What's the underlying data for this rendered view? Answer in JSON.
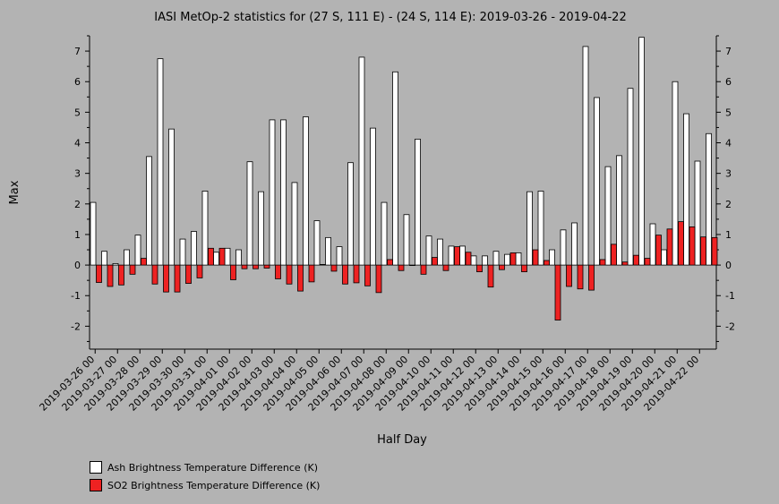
{
  "chart_data": {
    "type": "bar",
    "title": "IASI MetOp-2 statistics for (27 S, 111 E) - (24 S, 114 E): 2019-03-26 - 2019-04-22",
    "xlabel": "Half Day",
    "ylabel": "Max",
    "ylim": [
      -2.75,
      7.5
    ],
    "yticks": [
      -2,
      -1,
      0,
      1,
      2,
      3,
      4,
      5,
      6,
      7
    ],
    "x_tick_labels": [
      "2019-03-26 00",
      "2019-03-27 00",
      "2019-03-28 00",
      "2019-03-29 00",
      "2019-03-30 00",
      "2019-03-31 00",
      "2019-04-01 00",
      "2019-04-02 00",
      "2019-04-03 00",
      "2019-04-04 00",
      "2019-04-05 00",
      "2019-04-06 00",
      "2019-04-07 00",
      "2019-04-08 00",
      "2019-04-09 00",
      "2019-04-10 00",
      "2019-04-11 00",
      "2019-04-12 00",
      "2019-04-13 00",
      "2019-04-14 00",
      "2019-04-15 00",
      "2019-04-16 00",
      "2019-04-17 00",
      "2019-04-18 00",
      "2019-04-19 00",
      "2019-04-20 00",
      "2019-04-21 00",
      "2019-04-22 00"
    ],
    "legend_position": "bottom-left",
    "series": [
      {
        "name": "Ash Brightness Temperature Difference (K)",
        "color": "#ffffff",
        "values": [
          2.05,
          0.45,
          0.05,
          0.5,
          0.98,
          3.55,
          6.75,
          4.45,
          0.85,
          1.1,
          2.42,
          0.42,
          0.55,
          0.5,
          3.38,
          2.4,
          4.75,
          4.75,
          2.7,
          4.85,
          1.45,
          0.9,
          0.6,
          3.35,
          6.8,
          4.48,
          2.05,
          6.32,
          1.65,
          4.12,
          0.95,
          0.85,
          0.62,
          0.62,
          0.3,
          0.3,
          0.45,
          0.35,
          0.4,
          2.4,
          2.42,
          0.5,
          1.15,
          1.38,
          7.15,
          5.48,
          3.22,
          3.58,
          5.78,
          7.45,
          1.35,
          0.5,
          6.0,
          4.95,
          3.4,
          4.3
        ]
      },
      {
        "name": "SO2 Brightness Temperature Difference (K)",
        "color": "#ee2222",
        "values": [
          -0.57,
          -0.7,
          -0.65,
          -0.3,
          0.22,
          -0.62,
          -0.88,
          -0.88,
          -0.6,
          -0.42,
          0.55,
          0.55,
          -0.48,
          -0.12,
          -0.12,
          -0.1,
          -0.45,
          -0.62,
          -0.85,
          -0.55,
          0.02,
          -0.2,
          -0.62,
          -0.58,
          -0.68,
          -0.9,
          0.18,
          -0.18,
          0.0,
          -0.3,
          0.25,
          -0.18,
          0.6,
          0.42,
          -0.22,
          -0.72,
          -0.15,
          0.4,
          -0.22,
          0.5,
          0.15,
          -1.8,
          -0.7,
          -0.78,
          -0.82,
          0.18,
          0.68,
          0.1,
          0.32,
          0.22,
          0.98,
          1.18,
          1.42,
          1.25,
          0.92,
          0.9
        ]
      }
    ]
  }
}
